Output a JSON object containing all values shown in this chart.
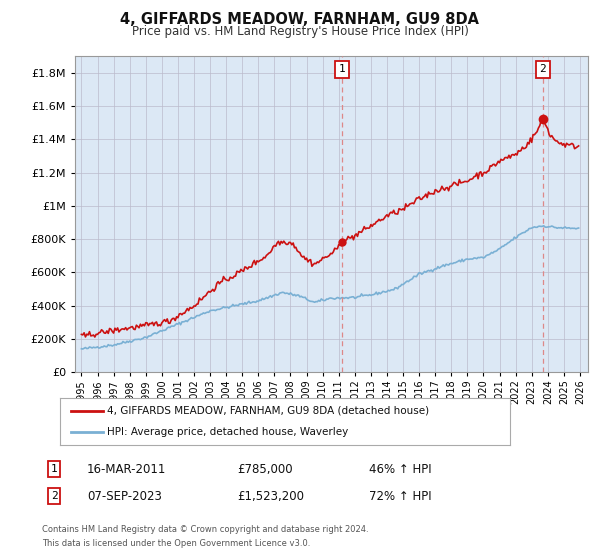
{
  "title": "4, GIFFARDS MEADOW, FARNHAM, GU9 8DA",
  "subtitle": "Price paid vs. HM Land Registry's House Price Index (HPI)",
  "legend_line1": "4, GIFFARDS MEADOW, FARNHAM, GU9 8DA (detached house)",
  "legend_line2": "HPI: Average price, detached house, Waverley",
  "annotation1_date": "16-MAR-2011",
  "annotation1_price": "£785,000",
  "annotation1_hpi": "46% ↑ HPI",
  "annotation1_year": 2011.21,
  "annotation1_value": 785000,
  "annotation2_date": "07-SEP-2023",
  "annotation2_price": "£1,523,200",
  "annotation2_hpi": "72% ↑ HPI",
  "annotation2_year": 2023.69,
  "annotation2_value": 1523200,
  "footer1": "Contains HM Land Registry data © Crown copyright and database right 2024.",
  "footer2": "This data is licensed under the Open Government Licence v3.0.",
  "hpi_color": "#7ab0d4",
  "price_color": "#cc1111",
  "dashed_line_color": "#dd8888",
  "shade_color": "#dce8f5",
  "background_color": "#dce8f5",
  "fig_bg_color": "#f0f0f0",
  "ylim": [
    0,
    1900000
  ],
  "xlim_start": 1994.6,
  "xlim_end": 2026.5
}
